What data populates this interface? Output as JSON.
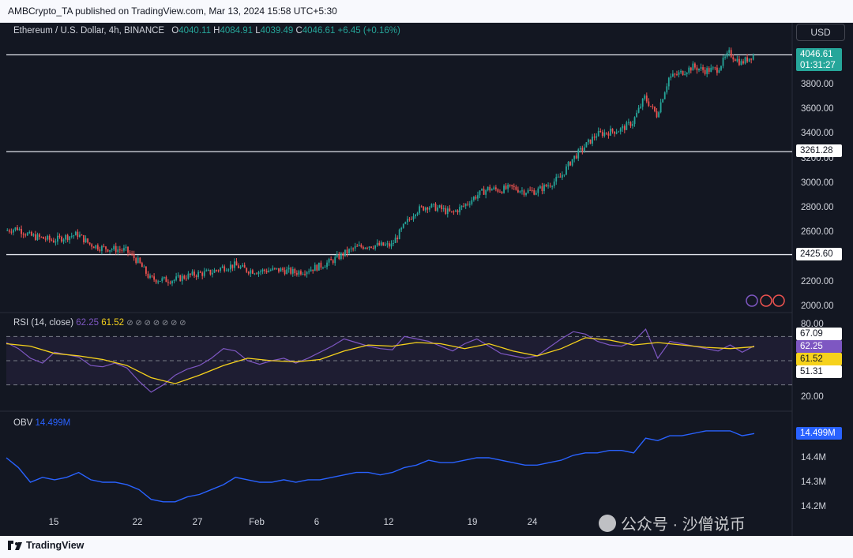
{
  "header": {
    "publisher_line": "AMBCrypto_TA published on TradingView.com, Mar 13, 2024 15:58 UTC+5:30"
  },
  "footer": {
    "brand": "TradingView"
  },
  "watermark": {
    "text": "公众号 · 沙僧说币",
    "overlap_text": "Ma",
    "overlap_text_2": "11"
  },
  "currency_button": "USD",
  "colors": {
    "up": "#26a69a",
    "down": "#ef5350",
    "rsi": "#7e57c2",
    "rsi_ma": "#f6d21c",
    "obv": "#2962ff",
    "background": "#131722"
  },
  "chart_data": [
    {
      "type": "candlestick",
      "symbol_line": "Ethereum / U.S. Dollar, 4h, BINANCE",
      "ohlc": {
        "open_label": "O",
        "open": "4040.11",
        "high_label": "H",
        "high": "4084.91",
        "low_label": "L",
        "low": "4039.49",
        "close_label": "C",
        "close": "4046.61",
        "change": "+6.45 (+0.16%)"
      },
      "last_price": "4046.61",
      "countdown": "01:31:27",
      "ylim": [
        2000,
        4150
      ],
      "yticks": [
        "3800.00",
        "3600.00",
        "3400.00",
        "3200.00",
        "3000.00",
        "2800.00",
        "2600.00",
        "2400.00",
        "2200.00",
        "2000.00"
      ],
      "horizontal_levels": [
        "4046.61",
        "3261.28",
        "2425.60"
      ],
      "x_ticks": [
        "15",
        "22",
        "27",
        "Feb",
        "6",
        "12",
        "19",
        "24"
      ],
      "close_path": [
        [
          "2024-01-11",
          2620
        ],
        [
          "2024-01-12",
          2640
        ],
        [
          "2024-01-13",
          2580
        ],
        [
          "2024-01-14",
          2560
        ],
        [
          "2024-01-15",
          2540
        ],
        [
          "2024-01-16",
          2570
        ],
        [
          "2024-01-17",
          2590
        ],
        [
          "2024-01-18",
          2510
        ],
        [
          "2024-01-19",
          2480
        ],
        [
          "2024-01-20",
          2470
        ],
        [
          "2024-01-21",
          2460
        ],
        [
          "2024-01-22",
          2370
        ],
        [
          "2024-01-23",
          2230
        ],
        [
          "2024-01-24",
          2220
        ],
        [
          "2024-01-25",
          2220
        ],
        [
          "2024-01-26",
          2250
        ],
        [
          "2024-01-27",
          2270
        ],
        [
          "2024-01-28",
          2280
        ],
        [
          "2024-01-29",
          2320
        ],
        [
          "2024-01-30",
          2340
        ],
        [
          "2024-01-31",
          2300
        ],
        [
          "2024-02-01",
          2290
        ],
        [
          "2024-02-02",
          2300
        ],
        [
          "2024-02-03",
          2300
        ],
        [
          "2024-02-04",
          2280
        ],
        [
          "2024-02-05",
          2300
        ],
        [
          "2024-02-06",
          2330
        ],
        [
          "2024-02-07",
          2370
        ],
        [
          "2024-02-08",
          2430
        ],
        [
          "2024-02-09",
          2480
        ],
        [
          "2024-02-10",
          2500
        ],
        [
          "2024-02-11",
          2500
        ],
        [
          "2024-02-12",
          2500
        ],
        [
          "2024-02-13",
          2650
        ],
        [
          "2024-02-14",
          2780
        ],
        [
          "2024-02-15",
          2820
        ],
        [
          "2024-02-16",
          2800
        ],
        [
          "2024-02-17",
          2760
        ],
        [
          "2024-02-18",
          2820
        ],
        [
          "2024-02-19",
          2900
        ],
        [
          "2024-02-20",
          2960
        ],
        [
          "2024-02-21",
          2950
        ],
        [
          "2024-02-22",
          2970
        ],
        [
          "2024-02-23",
          2940
        ],
        [
          "2024-02-24",
          2940
        ],
        [
          "2024-02-25",
          2990
        ],
        [
          "2024-02-26",
          3050
        ],
        [
          "2024-02-27",
          3200
        ],
        [
          "2024-02-28",
          3300
        ],
        [
          "2024-02-29",
          3400
        ],
        [
          "2024-03-01",
          3420
        ],
        [
          "2024-03-02",
          3440
        ],
        [
          "2024-03-03",
          3500
        ],
        [
          "2024-03-04",
          3700
        ],
        [
          "2024-03-05",
          3560
        ],
        [
          "2024-03-06",
          3860
        ],
        [
          "2024-03-07",
          3900
        ],
        [
          "2024-03-08",
          3950
        ],
        [
          "2024-03-09",
          3920
        ],
        [
          "2024-03-10",
          3930
        ],
        [
          "2024-03-11",
          4060
        ],
        [
          "2024-03-12",
          3980
        ],
        [
          "2024-03-13",
          4046
        ]
      ]
    },
    {
      "type": "line",
      "title": "RSI (14, close)",
      "rsi_value": "62.25",
      "ma_value": "61.52",
      "ylim": [
        15,
        85
      ],
      "yticks": [
        "80.00",
        "20.00"
      ],
      "band": [
        70,
        30
      ],
      "price_tags": [
        "67.09",
        "62.25",
        "61.52",
        "51.31"
      ],
      "rsi_path": [
        [
          "2024-01-11",
          65
        ],
        [
          "2024-01-12",
          60
        ],
        [
          "2024-01-13",
          52
        ],
        [
          "2024-01-14",
          48
        ],
        [
          "2024-01-15",
          57
        ],
        [
          "2024-01-16",
          55
        ],
        [
          "2024-01-17",
          53
        ],
        [
          "2024-01-18",
          46
        ],
        [
          "2024-01-19",
          45
        ],
        [
          "2024-01-20",
          48
        ],
        [
          "2024-01-21",
          44
        ],
        [
          "2024-01-22",
          33
        ],
        [
          "2024-01-23",
          24
        ],
        [
          "2024-01-24",
          30
        ],
        [
          "2024-01-25",
          38
        ],
        [
          "2024-01-26",
          43
        ],
        [
          "2024-01-27",
          46
        ],
        [
          "2024-01-28",
          52
        ],
        [
          "2024-01-29",
          60
        ],
        [
          "2024-01-30",
          58
        ],
        [
          "2024-01-31",
          50
        ],
        [
          "2024-02-01",
          47
        ],
        [
          "2024-02-02",
          50
        ],
        [
          "2024-02-03",
          52
        ],
        [
          "2024-02-04",
          48
        ],
        [
          "2024-02-05",
          52
        ],
        [
          "2024-02-06",
          57
        ],
        [
          "2024-02-07",
          62
        ],
        [
          "2024-02-08",
          68
        ],
        [
          "2024-02-09",
          65
        ],
        [
          "2024-02-10",
          62
        ],
        [
          "2024-02-11",
          60
        ],
        [
          "2024-02-12",
          59
        ],
        [
          "2024-02-13",
          70
        ],
        [
          "2024-02-14",
          68
        ],
        [
          "2024-02-15",
          66
        ],
        [
          "2024-02-16",
          62
        ],
        [
          "2024-02-17",
          58
        ],
        [
          "2024-02-18",
          64
        ],
        [
          "2024-02-19",
          68
        ],
        [
          "2024-02-20",
          62
        ],
        [
          "2024-02-21",
          56
        ],
        [
          "2024-02-22",
          54
        ],
        [
          "2024-02-23",
          52
        ],
        [
          "2024-02-24",
          54
        ],
        [
          "2024-02-25",
          61
        ],
        [
          "2024-02-26",
          68
        ],
        [
          "2024-02-27",
          74
        ],
        [
          "2024-02-28",
          72
        ],
        [
          "2024-02-29",
          66
        ],
        [
          "2024-03-01",
          63
        ],
        [
          "2024-03-02",
          62
        ],
        [
          "2024-03-03",
          66
        ],
        [
          "2024-03-04",
          76
        ],
        [
          "2024-03-05",
          52
        ],
        [
          "2024-03-06",
          66
        ],
        [
          "2024-03-07",
          64
        ],
        [
          "2024-03-08",
          62
        ],
        [
          "2024-03-09",
          60
        ],
        [
          "2024-03-10",
          58
        ],
        [
          "2024-03-11",
          63
        ],
        [
          "2024-03-12",
          57
        ],
        [
          "2024-03-13",
          62.25
        ]
      ],
      "ma_path": [
        [
          "2024-01-11",
          64
        ],
        [
          "2024-01-13",
          62
        ],
        [
          "2024-01-15",
          56
        ],
        [
          "2024-01-17",
          54
        ],
        [
          "2024-01-19",
          51
        ],
        [
          "2024-01-21",
          46
        ],
        [
          "2024-01-23",
          36
        ],
        [
          "2024-01-25",
          31
        ],
        [
          "2024-01-27",
          38
        ],
        [
          "2024-01-29",
          46
        ],
        [
          "2024-01-31",
          52
        ],
        [
          "2024-02-02",
          50
        ],
        [
          "2024-02-04",
          49
        ],
        [
          "2024-02-06",
          51
        ],
        [
          "2024-02-08",
          58
        ],
        [
          "2024-02-10",
          63
        ],
        [
          "2024-02-12",
          62
        ],
        [
          "2024-02-14",
          65
        ],
        [
          "2024-02-16",
          64
        ],
        [
          "2024-02-18",
          60
        ],
        [
          "2024-02-20",
          64
        ],
        [
          "2024-02-22",
          58
        ],
        [
          "2024-02-24",
          54
        ],
        [
          "2024-02-26",
          60
        ],
        [
          "2024-02-28",
          69
        ],
        [
          "2024-03-01",
          67
        ],
        [
          "2024-03-03",
          63
        ],
        [
          "2024-03-05",
          65
        ],
        [
          "2024-03-07",
          63
        ],
        [
          "2024-03-09",
          61
        ],
        [
          "2024-03-11",
          60
        ],
        [
          "2024-03-13",
          61.52
        ]
      ]
    },
    {
      "type": "line",
      "title": "OBV",
      "obv_value": "14.499M",
      "ylim": [
        14.18,
        14.52
      ],
      "yticks": [
        "14.4M",
        "14.3M",
        "14.2M"
      ],
      "obv_path": [
        [
          "2024-01-11",
          14.4
        ],
        [
          "2024-01-12",
          14.36
        ],
        [
          "2024-01-13",
          14.3
        ],
        [
          "2024-01-14",
          14.32
        ],
        [
          "2024-01-15",
          14.31
        ],
        [
          "2024-01-16",
          14.32
        ],
        [
          "2024-01-17",
          14.34
        ],
        [
          "2024-01-18",
          14.31
        ],
        [
          "2024-01-19",
          14.3
        ],
        [
          "2024-01-20",
          14.3
        ],
        [
          "2024-01-21",
          14.29
        ],
        [
          "2024-01-22",
          14.27
        ],
        [
          "2024-01-23",
          14.23
        ],
        [
          "2024-01-24",
          14.22
        ],
        [
          "2024-01-25",
          14.22
        ],
        [
          "2024-01-26",
          14.24
        ],
        [
          "2024-01-27",
          14.25
        ],
        [
          "2024-01-28",
          14.27
        ],
        [
          "2024-01-29",
          14.29
        ],
        [
          "2024-01-30",
          14.32
        ],
        [
          "2024-01-31",
          14.31
        ],
        [
          "2024-02-01",
          14.3
        ],
        [
          "2024-02-02",
          14.3
        ],
        [
          "2024-02-03",
          14.31
        ],
        [
          "2024-02-04",
          14.3
        ],
        [
          "2024-02-05",
          14.31
        ],
        [
          "2024-02-06",
          14.31
        ],
        [
          "2024-02-07",
          14.32
        ],
        [
          "2024-02-08",
          14.33
        ],
        [
          "2024-02-09",
          14.34
        ],
        [
          "2024-02-10",
          14.34
        ],
        [
          "2024-02-11",
          14.33
        ],
        [
          "2024-02-12",
          14.34
        ],
        [
          "2024-02-13",
          14.36
        ],
        [
          "2024-02-14",
          14.37
        ],
        [
          "2024-02-15",
          14.39
        ],
        [
          "2024-02-16",
          14.38
        ],
        [
          "2024-02-17",
          14.38
        ],
        [
          "2024-02-18",
          14.39
        ],
        [
          "2024-02-19",
          14.4
        ],
        [
          "2024-02-20",
          14.4
        ],
        [
          "2024-02-21",
          14.39
        ],
        [
          "2024-02-22",
          14.38
        ],
        [
          "2024-02-23",
          14.37
        ],
        [
          "2024-02-24",
          14.37
        ],
        [
          "2024-02-25",
          14.38
        ],
        [
          "2024-02-26",
          14.39
        ],
        [
          "2024-02-27",
          14.41
        ],
        [
          "2024-02-28",
          14.42
        ],
        [
          "2024-02-29",
          14.42
        ],
        [
          "2024-03-01",
          14.43
        ],
        [
          "2024-03-02",
          14.43
        ],
        [
          "2024-03-03",
          14.42
        ],
        [
          "2024-03-04",
          14.48
        ],
        [
          "2024-03-05",
          14.47
        ],
        [
          "2024-03-06",
          14.49
        ],
        [
          "2024-03-07",
          14.49
        ],
        [
          "2024-03-08",
          14.5
        ],
        [
          "2024-03-09",
          14.51
        ],
        [
          "2024-03-10",
          14.51
        ],
        [
          "2024-03-11",
          14.51
        ],
        [
          "2024-03-12",
          14.49
        ],
        [
          "2024-03-13",
          14.499
        ]
      ]
    }
  ]
}
